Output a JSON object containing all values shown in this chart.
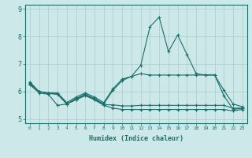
{
  "title": "",
  "xlabel": "Humidex (Indice chaleur)",
  "bg_color": "#cce8e8",
  "grid_color": "#aacccc",
  "line_color": "#1a6e6a",
  "x": [
    0,
    1,
    2,
    3,
    4,
    5,
    6,
    7,
    8,
    9,
    10,
    11,
    12,
    13,
    14,
    15,
    16,
    17,
    18,
    19,
    20,
    21,
    22,
    23
  ],
  "line1": [
    6.35,
    6.0,
    5.95,
    5.9,
    5.55,
    5.75,
    5.9,
    5.75,
    5.55,
    6.05,
    6.4,
    6.55,
    6.95,
    8.35,
    8.7,
    7.45,
    8.05,
    7.35,
    6.65,
    6.6,
    6.6,
    5.85,
    5.35,
    5.4
  ],
  "line2": [
    6.3,
    6.0,
    5.95,
    5.95,
    5.6,
    5.8,
    5.95,
    5.8,
    5.6,
    6.1,
    6.45,
    6.55,
    6.65,
    6.6,
    6.6,
    6.6,
    6.6,
    6.6,
    6.6,
    6.6,
    6.6,
    6.05,
    5.55,
    5.45
  ],
  "line3": [
    6.28,
    6.0,
    5.93,
    5.9,
    5.55,
    5.72,
    5.88,
    5.72,
    5.52,
    5.52,
    5.48,
    5.48,
    5.5,
    5.5,
    5.5,
    5.5,
    5.5,
    5.5,
    5.5,
    5.5,
    5.5,
    5.5,
    5.4,
    5.4
  ],
  "line4": [
    6.25,
    5.95,
    5.9,
    5.5,
    5.55,
    5.7,
    5.85,
    5.7,
    5.5,
    5.4,
    5.35,
    5.35,
    5.35,
    5.35,
    5.35,
    5.35,
    5.35,
    5.35,
    5.35,
    5.35,
    5.35,
    5.35,
    5.3,
    5.35
  ],
  "ylim": [
    4.85,
    9.15
  ],
  "xlim": [
    -0.5,
    23.5
  ],
  "yticks": [
    5,
    6,
    7,
    8,
    9
  ],
  "xticks": [
    0,
    1,
    2,
    3,
    4,
    5,
    6,
    7,
    8,
    9,
    10,
    11,
    12,
    13,
    14,
    15,
    16,
    17,
    18,
    19,
    20,
    21,
    22,
    23
  ]
}
